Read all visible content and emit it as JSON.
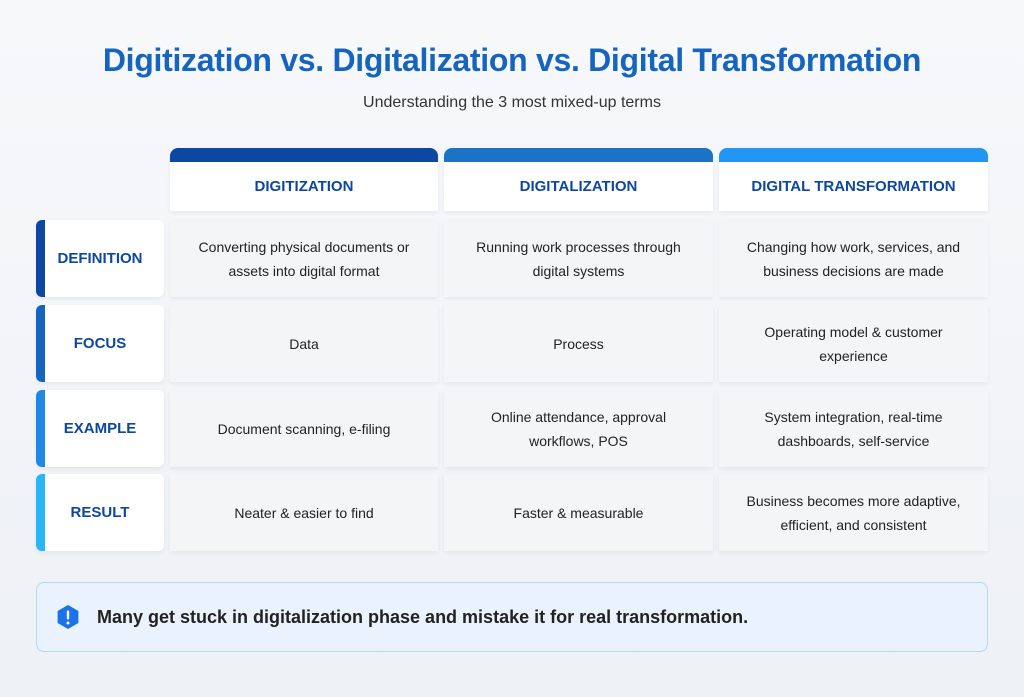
{
  "header": {
    "title": "Digitization vs. Digitalization vs. Digital Transformation",
    "subtitle": "Understanding the 3 most mixed-up terms"
  },
  "table": {
    "columns": [
      "DIGITIZATION",
      "DIGITALIZATION",
      "DIGITAL TRANSFORMATION"
    ],
    "rows": [
      {
        "label": "DEFINITION",
        "cells": [
          "Converting physical documents or assets into digital format",
          "Running work processes through digital systems",
          "Changing how work, services, and business decisions are made"
        ]
      },
      {
        "label": "FOCUS",
        "cells": [
          "Data",
          "Process",
          "Operating model & customer experience"
        ]
      },
      {
        "label": "EXAMPLE",
        "cells": [
          "Document scanning, e-filing",
          "Online attendance, approval workflows, POS",
          "System integration, real-time dashboards, self-service"
        ]
      },
      {
        "label": "RESULT",
        "cells": [
          "Neater & easier to find",
          "Faster & measurable",
          "Business becomes more adaptive, efficient, and consistent"
        ]
      }
    ]
  },
  "callout": {
    "text": "Many get stuck in digitalization phase and mistake it for real transformation."
  }
}
